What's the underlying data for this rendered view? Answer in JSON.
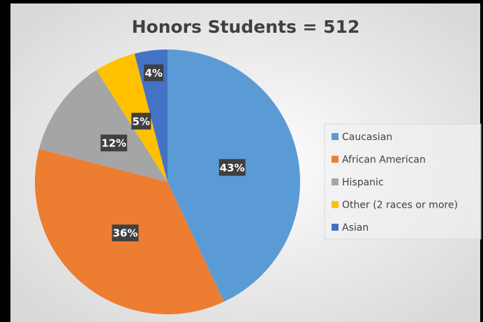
{
  "chart_data": {
    "type": "pie",
    "title": "Honors Students = 512",
    "categories": [
      "Caucasian",
      "African American",
      "Hispanic",
      "Other (2 races or more)",
      "Asian"
    ],
    "values": [
      43,
      36,
      12,
      5,
      4
    ],
    "value_labels": [
      "43%",
      "36%",
      "12%",
      "5%",
      "4%"
    ],
    "colors": [
      "#5b9bd5",
      "#ed7d31",
      "#a5a5a5",
      "#ffc000",
      "#4472c4"
    ],
    "legend": "right"
  }
}
